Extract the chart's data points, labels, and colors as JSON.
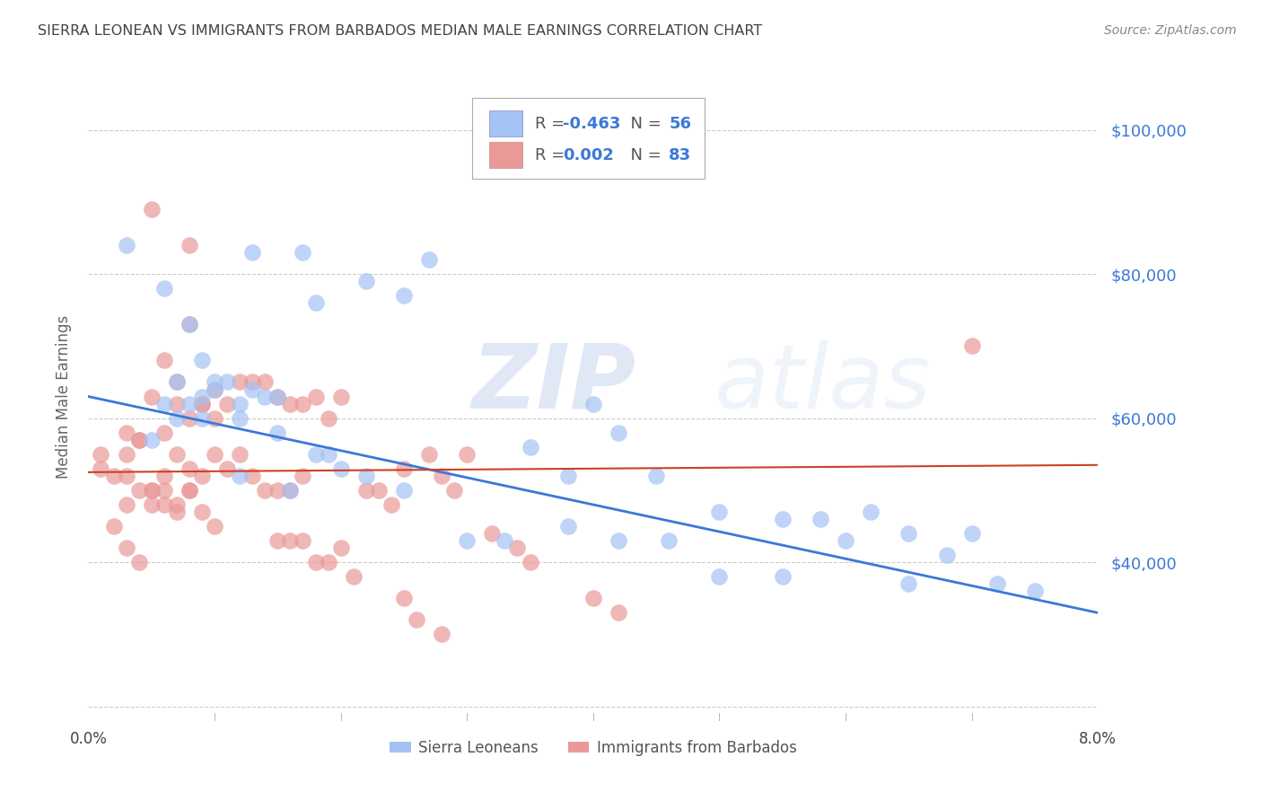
{
  "title": "SIERRA LEONEAN VS IMMIGRANTS FROM BARBADOS MEDIAN MALE EARNINGS CORRELATION CHART",
  "source": "Source: ZipAtlas.com",
  "ylabel": "Median Male Earnings",
  "xlim": [
    0.0,
    0.08
  ],
  "ylim": [
    18000,
    108000
  ],
  "yticks": [
    20000,
    40000,
    60000,
    80000,
    100000
  ],
  "ytick_labels": [
    "",
    "$40,000",
    "$60,000",
    "$80,000",
    "$100,000"
  ],
  "xticks": [
    0.0,
    0.01,
    0.02,
    0.03,
    0.04,
    0.05,
    0.06,
    0.07,
    0.08
  ],
  "xtick_labels": [
    "0.0%",
    "",
    "",
    "",
    "",
    "",
    "",
    "",
    "8.0%"
  ],
  "blue_color": "#a4c2f4",
  "pink_color": "#ea9999",
  "blue_line_color": "#3c78d8",
  "pink_line_color": "#cc4125",
  "legend_R_blue": "-0.463",
  "legend_N_blue": "56",
  "legend_R_pink": "0.002",
  "legend_N_pink": "83",
  "legend_label_blue": "Sierra Leoneans",
  "legend_label_pink": "Immigrants from Barbados",
  "watermark_zip": "ZIP",
  "watermark_atlas": "atlas",
  "title_color": "#434343",
  "axis_label_color": "#666666",
  "tick_color_right": "#3c78d8",
  "grid_color": "#cccccc",
  "blue_line_x0": 0.0,
  "blue_line_y0": 63000,
  "blue_line_x1": 0.08,
  "blue_line_y1": 33000,
  "pink_line_x0": 0.0,
  "pink_line_y0": 52500,
  "pink_line_x1": 0.08,
  "pink_line_y1": 53500,
  "blue_scatter_x": [
    0.003,
    0.006,
    0.013,
    0.017,
    0.018,
    0.022,
    0.025,
    0.027,
    0.008,
    0.009,
    0.01,
    0.007,
    0.006,
    0.008,
    0.009,
    0.01,
    0.011,
    0.013,
    0.014,
    0.012,
    0.015,
    0.012,
    0.015,
    0.018,
    0.019,
    0.022,
    0.035,
    0.04,
    0.042,
    0.038,
    0.045,
    0.05,
    0.055,
    0.058,
    0.062,
    0.065,
    0.068,
    0.07,
    0.072,
    0.075,
    0.005,
    0.007,
    0.009,
    0.012,
    0.016,
    0.02,
    0.025,
    0.03,
    0.033,
    0.038,
    0.042,
    0.046,
    0.05,
    0.055,
    0.06,
    0.065
  ],
  "blue_scatter_y": [
    84000,
    78000,
    83000,
    83000,
    76000,
    79000,
    77000,
    82000,
    73000,
    68000,
    65000,
    65000,
    62000,
    62000,
    63000,
    64000,
    65000,
    64000,
    63000,
    62000,
    63000,
    60000,
    58000,
    55000,
    55000,
    52000,
    56000,
    62000,
    58000,
    52000,
    52000,
    47000,
    46000,
    46000,
    47000,
    44000,
    41000,
    44000,
    37000,
    36000,
    57000,
    60000,
    60000,
    52000,
    50000,
    53000,
    50000,
    43000,
    43000,
    45000,
    43000,
    43000,
    38000,
    38000,
    43000,
    37000
  ],
  "pink_scatter_x": [
    0.005,
    0.008,
    0.001,
    0.003,
    0.004,
    0.006,
    0.007,
    0.008,
    0.009,
    0.01,
    0.007,
    0.006,
    0.005,
    0.004,
    0.003,
    0.008,
    0.009,
    0.01,
    0.011,
    0.012,
    0.013,
    0.014,
    0.015,
    0.016,
    0.017,
    0.018,
    0.019,
    0.02,
    0.006,
    0.007,
    0.008,
    0.009,
    0.01,
    0.011,
    0.012,
    0.005,
    0.006,
    0.007,
    0.008,
    0.013,
    0.014,
    0.015,
    0.016,
    0.017,
    0.022,
    0.023,
    0.024,
    0.025,
    0.027,
    0.028,
    0.029,
    0.03,
    0.032,
    0.034,
    0.035,
    0.04,
    0.042,
    0.002,
    0.003,
    0.004,
    0.005,
    0.006,
    0.007,
    0.008,
    0.009,
    0.01,
    0.015,
    0.016,
    0.017,
    0.018,
    0.019,
    0.02,
    0.021,
    0.025,
    0.026,
    0.028,
    0.001,
    0.002,
    0.003,
    0.003,
    0.004,
    0.005,
    0.07
  ],
  "pink_scatter_y": [
    89000,
    84000,
    53000,
    55000,
    57000,
    58000,
    62000,
    60000,
    62000,
    64000,
    65000,
    68000,
    63000,
    57000,
    58000,
    73000,
    62000,
    60000,
    62000,
    65000,
    65000,
    65000,
    63000,
    62000,
    62000,
    63000,
    60000,
    63000,
    52000,
    55000,
    53000,
    52000,
    55000,
    53000,
    55000,
    50000,
    50000,
    48000,
    50000,
    52000,
    50000,
    50000,
    50000,
    52000,
    50000,
    50000,
    48000,
    53000,
    55000,
    52000,
    50000,
    55000,
    44000,
    42000,
    40000,
    35000,
    33000,
    45000,
    42000,
    40000,
    50000,
    48000,
    47000,
    50000,
    47000,
    45000,
    43000,
    43000,
    43000,
    40000,
    40000,
    42000,
    38000,
    35000,
    32000,
    30000,
    55000,
    52000,
    48000,
    52000,
    50000,
    48000,
    70000
  ]
}
